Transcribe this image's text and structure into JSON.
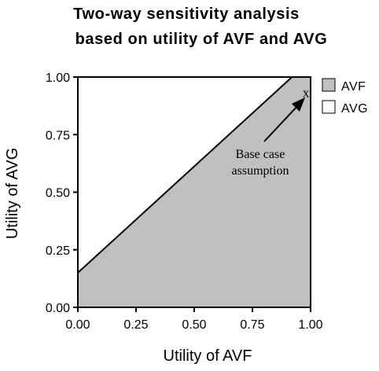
{
  "chart_data": {
    "type": "area",
    "title": [
      "Two-way sensitivity analysis",
      "based on utility of AVF and AVG"
    ],
    "xlabel": "Utility of AVF",
    "ylabel": "Utility of AVG",
    "xlim": [
      0,
      1
    ],
    "ylim": [
      0,
      1
    ],
    "xticks": [
      "0.00",
      "0.25",
      "0.50",
      "0.75",
      "1.00"
    ],
    "yticks": [
      "0.00",
      "0.25",
      "0.50",
      "0.75",
      "1.00"
    ],
    "grid": false,
    "legend_position": "right",
    "threshold_line": {
      "x": [
        0.0,
        0.92
      ],
      "y": [
        0.15,
        1.0
      ]
    },
    "series": [
      {
        "name": "AVF",
        "color": "#c0c0c0",
        "region": "below threshold line"
      },
      {
        "name": "AVG",
        "color": "#ffffff",
        "region": "above threshold line"
      }
    ],
    "base_case": {
      "x": 0.98,
      "y": 0.93,
      "marker": "x"
    },
    "annotation": [
      "Base case",
      "assumption"
    ]
  }
}
